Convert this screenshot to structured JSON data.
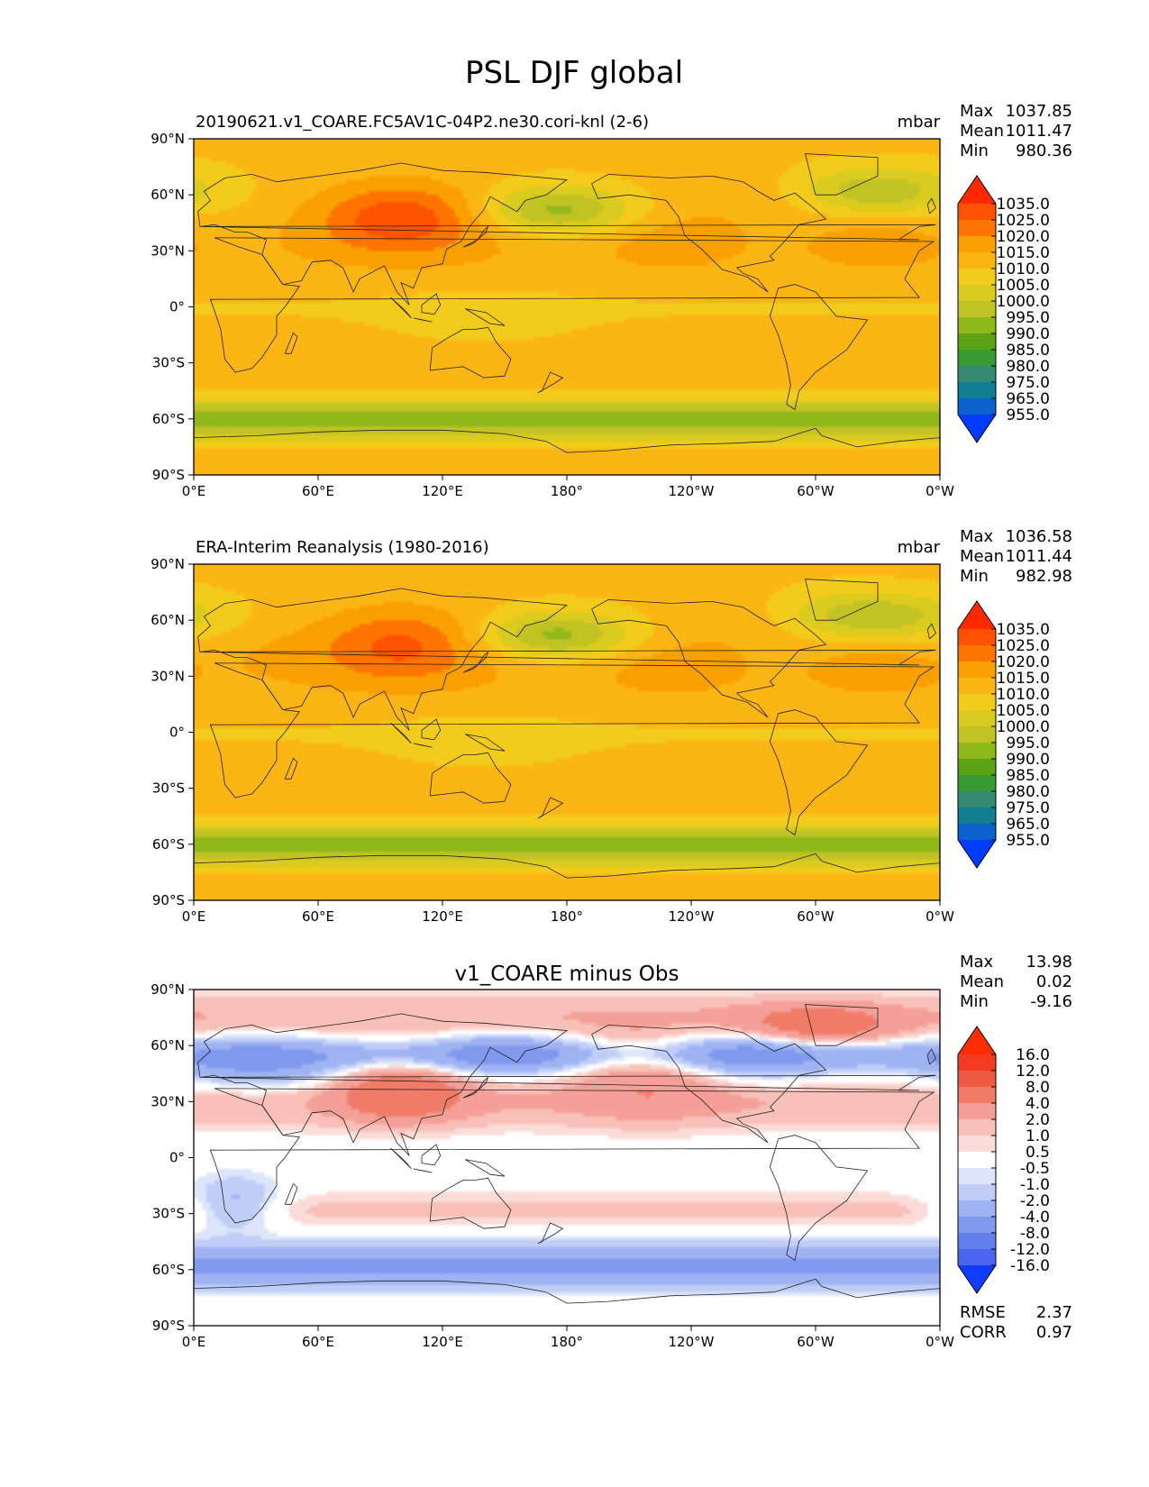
{
  "figure": {
    "title": "PSL DJF global"
  },
  "lon_ticks": [
    "0°E",
    "60°E",
    "120°E",
    "180°",
    "120°W",
    "60°W",
    "0°W"
  ],
  "lat_ticks": [
    "90°N",
    "60°N",
    "30°N",
    "0°",
    "30°S",
    "60°S",
    "90°S"
  ],
  "chart_data": [
    {
      "type": "heatmap",
      "title": "20190621.v1_COARE.FC5AV1C-04P2.ne30.cori-knl (2-6)",
      "units": "mbar",
      "stats": {
        "labels": [
          "Max",
          "Mean",
          "Min"
        ],
        "values": [
          "1037.85",
          "1011.47",
          "980.36"
        ]
      },
      "xlim": [
        0,
        360
      ],
      "ylim": [
        -90,
        90
      ],
      "colorbar": {
        "levels": [
          "1035.0",
          "1025.0",
          "1020.0",
          "1015.0",
          "1010.0",
          "1005.0",
          "1000.0",
          "995.0",
          "990.0",
          "985.0",
          "980.0",
          "975.0",
          "965.0",
          "955.0"
        ],
        "colors": [
          "#ff2a00",
          "#ff5200",
          "#fd7400",
          "#f9a000",
          "#fbb515",
          "#f3cc1b",
          "#d9cb1f",
          "#c1c223",
          "#8fb81b",
          "#5ba314",
          "#379a32",
          "#378a72",
          "#127e91",
          "#0b62cd",
          "#003cff"
        ]
      }
    },
    {
      "type": "heatmap",
      "title": "ERA-Interim Reanalysis (1980-2016)",
      "units": "mbar",
      "stats": {
        "labels": [
          "Max",
          "Mean",
          "Min"
        ],
        "values": [
          "1036.58",
          "1011.44",
          "982.98"
        ]
      },
      "xlim": [
        0,
        360
      ],
      "ylim": [
        -90,
        90
      ],
      "colorbar": {
        "levels": [
          "1035.0",
          "1025.0",
          "1020.0",
          "1015.0",
          "1010.0",
          "1005.0",
          "1000.0",
          "995.0",
          "990.0",
          "985.0",
          "980.0",
          "975.0",
          "965.0",
          "955.0"
        ],
        "colors": [
          "#ff2a00",
          "#ff5200",
          "#fd7400",
          "#f9a000",
          "#fbb515",
          "#f3cc1b",
          "#d9cb1f",
          "#c1c223",
          "#8fb81b",
          "#5ba314",
          "#379a32",
          "#378a72",
          "#127e91",
          "#0b62cd",
          "#003cff"
        ]
      }
    },
    {
      "type": "heatmap",
      "title": "v1_COARE minus Obs",
      "units": "",
      "stats": {
        "labels": [
          "Max",
          "Mean",
          "Min"
        ],
        "values": [
          "13.98",
          "0.02",
          "-9.16"
        ]
      },
      "xlim": [
        0,
        360
      ],
      "ylim": [
        -90,
        90
      ],
      "colorbar": {
        "levels": [
          "16.0",
          "12.0",
          "8.0",
          "4.0",
          "2.0",
          "1.0",
          "0.5",
          "-0.5",
          "-1.0",
          "-2.0",
          "-4.0",
          "-8.0",
          "-12.0",
          "-16.0"
        ],
        "colors": [
          "#ff2d00",
          "#f43b22",
          "#f05a45",
          "#f07b68",
          "#f4a098",
          "#f8c0b8",
          "#fbdcd8",
          "#ffffff",
          "#dde5fa",
          "#bfcdf7",
          "#9fb3f3",
          "#8099ef",
          "#6580ec",
          "#4a66ee",
          "#0f3cff"
        ]
      },
      "footer": {
        "labels": [
          "RMSE",
          "CORR"
        ],
        "values": [
          "2.37",
          "0.97"
        ]
      }
    }
  ]
}
